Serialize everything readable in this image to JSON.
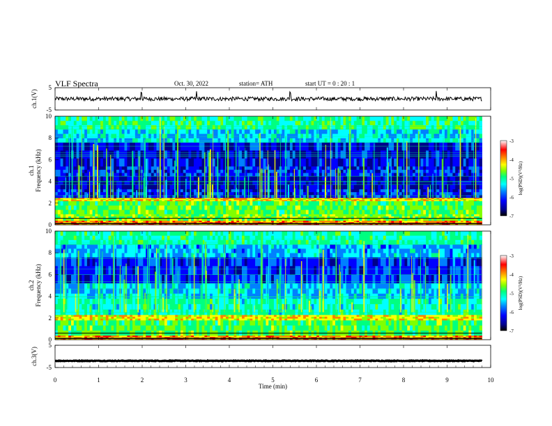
{
  "header": {
    "title": "VLF  Spectra",
    "date": "Oct. 30, 2022",
    "station": "station= ATH",
    "start": "start  UT  =    0  : 20 : 1"
  },
  "chart_data": [
    {
      "type": "line",
      "name": "ch1-waveform",
      "ylabel": "ch.1(V)",
      "ylim": [
        -5,
        5
      ],
      "yticks": [
        "5",
        "-5"
      ],
      "xlim": [
        0,
        10
      ],
      "baseline": 0,
      "noise_amplitude": 0.9,
      "spikes_at_min": [
        1.98,
        3.25,
        5.4,
        8.75
      ]
    },
    {
      "type": "heatmap",
      "name": "ch1-spectrogram",
      "ylabel_line1": "ch.1",
      "ylabel_line2": "Frequency  (kHz)",
      "ylim": [
        0,
        10
      ],
      "yticks": [
        "0",
        "2",
        "4",
        "6",
        "8",
        "10"
      ],
      "xlim": [
        0,
        10
      ],
      "data_end_min": 9.8,
      "colorbar": {
        "label": "log(PSD)(V²/Hz)",
        "range": [
          -7,
          -3
        ],
        "ticks": [
          "-3",
          "-4",
          "-5",
          "-6",
          "-7"
        ]
      }
    },
    {
      "type": "heatmap",
      "name": "ch2-spectrogram",
      "ylabel_line1": "ch.2",
      "ylabel_line2": "Frequency  (kHz)",
      "ylim": [
        0,
        10
      ],
      "yticks": [
        "0",
        "2",
        "4",
        "6",
        "8",
        "10"
      ],
      "xlim": [
        0,
        10
      ],
      "data_end_min": 9.8,
      "colorbar": {
        "label": "log(PSD)(V²/Hz)",
        "range": [
          -7,
          -3
        ],
        "ticks": [
          "-3",
          "-4",
          "-5",
          "-6",
          "-7"
        ]
      }
    },
    {
      "type": "line",
      "name": "ch3-waveform",
      "ylabel": "ch.3(V)",
      "ylim": [
        -5,
        5
      ],
      "yticks": [
        "5",
        "-5"
      ],
      "xlim": [
        0,
        10
      ],
      "baseline": -2,
      "noise_amplitude": 0.15
    }
  ],
  "xaxis": {
    "label": "Time  (min)",
    "ticks": [
      "0",
      "1",
      "2",
      "3",
      "4",
      "5",
      "6",
      "7",
      "8",
      "9",
      "10"
    ]
  },
  "colors": {
    "colormap": [
      "#000000",
      "#00008b",
      "#0000ff",
      "#0080ff",
      "#00ffff",
      "#00ff80",
      "#80ff00",
      "#ffff00",
      "#ff8000",
      "#ff0000",
      "#ffffff"
    ]
  }
}
